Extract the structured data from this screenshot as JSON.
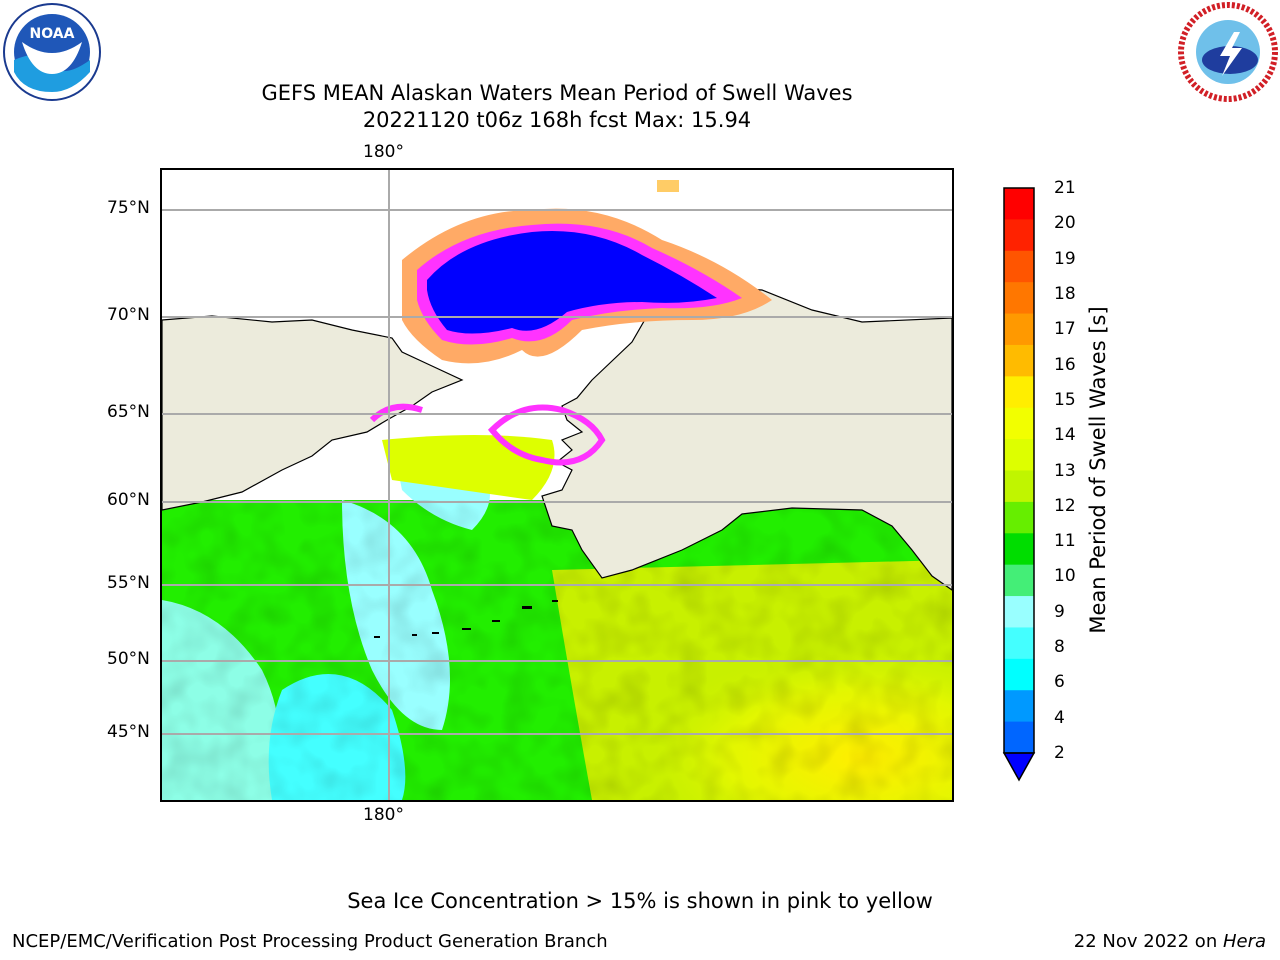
{
  "title_line1": "GEFS MEAN Alaskan Waters Mean Period of Swell Waves",
  "title_line2": "20221120 t06z 168h fcst   Max: 15.94",
  "logos": {
    "left": "noaa-logo",
    "right": "nws-logo",
    "noaa_text": "NOAA"
  },
  "map": {
    "lon_label": "180°",
    "lat_labels": [
      "75°N",
      "70°N",
      "65°N",
      "60°N",
      "55°N",
      "50°N",
      "45°N"
    ],
    "colors": {
      "land": "#ecebdc",
      "ice_pink": "#ff33ff",
      "ice_blue": "#0000ff"
    }
  },
  "colorbar": {
    "label": "Mean Period of Swell Waves [s]",
    "ticks": [
      "21",
      "20",
      "19",
      "18",
      "17",
      "16",
      "15",
      "14",
      "13",
      "12",
      "11",
      "10",
      "9",
      "8",
      "6",
      "4",
      "2"
    ],
    "colors": [
      "#ff0000",
      "#ff2200",
      "#ff5500",
      "#ff7700",
      "#ff9900",
      "#ffbb00",
      "#ffee00",
      "#f2ff00",
      "#ddff00",
      "#c0f500",
      "#66ee00",
      "#00dd00",
      "#44ee77",
      "#99ffff",
      "#44ffff",
      "#00ffff",
      "#0099ff",
      "#0066ff"
    ],
    "extend_color": "#0000ff"
  },
  "caption": "Sea Ice Concentration > 15% is shown in pink to yellow",
  "footer_left": "NCEP/EMC/Verification Post Processing Product Generation Branch",
  "footer_right_date": "22 Nov 2022 on ",
  "footer_right_host": "Hera"
}
